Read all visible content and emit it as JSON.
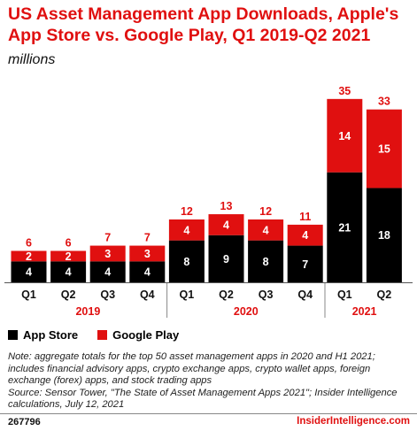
{
  "title": "US Asset Management App Downloads, Apple's App Store vs. Google Play, Q1 2019-Q2 2021",
  "subtitle": "millions",
  "colors": {
    "app_store": "#000000",
    "google_play": "#e01010",
    "accent": "#e01010"
  },
  "chart_data": {
    "type": "bar",
    "stacked": true,
    "categories": [
      "Q1",
      "Q2",
      "Q3",
      "Q4",
      "Q1",
      "Q2",
      "Q3",
      "Q4",
      "Q1",
      "Q2"
    ],
    "groups": [
      {
        "label": "2019",
        "count": 4
      },
      {
        "label": "2020",
        "count": 4
      },
      {
        "label": "2021",
        "count": 2
      }
    ],
    "series": [
      {
        "name": "App Store",
        "values": [
          4,
          4,
          4,
          4,
          8,
          9,
          8,
          7,
          21,
          18
        ]
      },
      {
        "name": "Google Play",
        "values": [
          2,
          2,
          3,
          3,
          4,
          4,
          4,
          4,
          14,
          15
        ]
      }
    ],
    "totals": [
      6,
      6,
      7,
      7,
      12,
      13,
      12,
      11,
      35,
      33
    ],
    "ylim": [
      0,
      37
    ],
    "grid": false,
    "legend": "bottom-left"
  },
  "notes": {
    "note": "Note: aggregate totals for the top 50 asset management apps in 2020 and H1 2021; includes financial advisory apps, crypto exchange apps, crypto wallet apps, foreign exchange (forex) apps, and stock trading apps",
    "source": "Source: Sensor Tower, \"The State of Asset Management Apps 2021\"; Insider Intelligence calculations, July 12, 2021"
  },
  "footer": {
    "id": "267796",
    "brand": "InsiderIntelligence.com"
  }
}
